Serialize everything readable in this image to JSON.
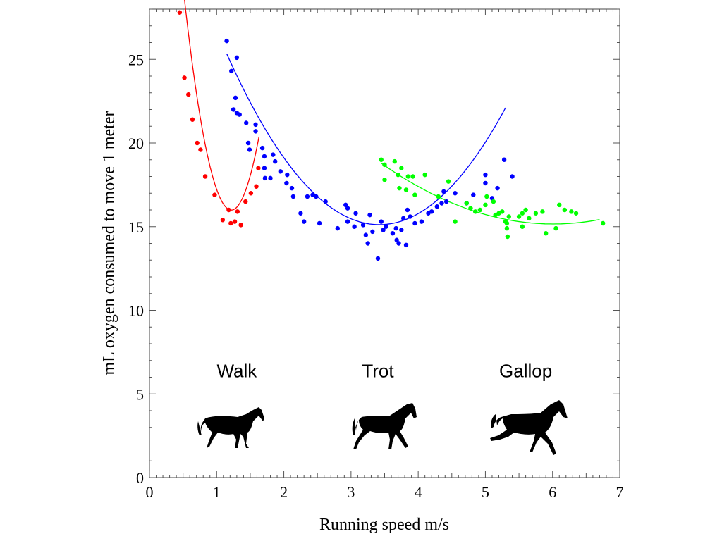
{
  "chart_data": {
    "type": "scatter",
    "title": "",
    "xlabel": "Running speed m/s",
    "ylabel": "mL oxygen consumed to move 1 meter",
    "xlim": [
      0,
      7
    ],
    "ylim": [
      0,
      28
    ],
    "xticks": [
      "0",
      "1",
      "2",
      "3",
      "4",
      "5",
      "6",
      "7"
    ],
    "yticks": [
      "0",
      "5",
      "10",
      "15",
      "20",
      "25"
    ],
    "grid": false,
    "legend": "none",
    "gait_labels": [
      {
        "text": "Walk",
        "x": 1.3,
        "y": 6.0
      },
      {
        "text": "Trot",
        "x": 3.4,
        "y": 6.0
      },
      {
        "text": "Gallop",
        "x": 5.6,
        "y": 6.0
      }
    ],
    "horse_icons": [
      "walking-horse-icon",
      "trotting-horse-icon",
      "galloping-horse-icon"
    ],
    "series": [
      {
        "color": "#ff0000",
        "points": [
          [
            0.45,
            27.8
          ],
          [
            0.52,
            23.9
          ],
          [
            0.58,
            22.9
          ],
          [
            0.64,
            21.4
          ],
          [
            0.71,
            20.0
          ],
          [
            0.76,
            19.6
          ],
          [
            0.83,
            18.0
          ],
          [
            0.97,
            16.9
          ],
          [
            1.09,
            15.4
          ],
          [
            1.18,
            16.0
          ],
          [
            1.21,
            15.2
          ],
          [
            1.27,
            15.3
          ],
          [
            1.31,
            15.9
          ],
          [
            1.36,
            15.1
          ],
          [
            1.43,
            16.5
          ],
          [
            1.51,
            17.0
          ],
          [
            1.59,
            17.4
          ],
          [
            1.62,
            18.5
          ]
        ],
        "fit": {
          "x_range": [
            0.42,
            1.63
          ],
          "coeffs": [
            54.45,
            -63.12,
            25.9
          ]
        }
      },
      {
        "color": "#0000ff",
        "points": [
          [
            1.15,
            26.1
          ],
          [
            1.22,
            24.3
          ],
          [
            1.3,
            25.1
          ],
          [
            1.25,
            22.0
          ],
          [
            1.28,
            22.7
          ],
          [
            1.3,
            21.8
          ],
          [
            1.34,
            21.7
          ],
          [
            1.44,
            21.2
          ],
          [
            1.47,
            20.0
          ],
          [
            1.49,
            19.6
          ],
          [
            1.58,
            21.1
          ],
          [
            1.58,
            20.7
          ],
          [
            1.68,
            19.7
          ],
          [
            1.71,
            19.2
          ],
          [
            1.71,
            18.5
          ],
          [
            1.72,
            17.9
          ],
          [
            1.8,
            17.9
          ],
          [
            1.84,
            19.3
          ],
          [
            1.87,
            18.9
          ],
          [
            1.95,
            18.3
          ],
          [
            2.05,
            18.1
          ],
          [
            2.04,
            17.6
          ],
          [
            2.12,
            17.3
          ],
          [
            2.14,
            16.8
          ],
          [
            2.25,
            15.8
          ],
          [
            2.3,
            15.3
          ],
          [
            2.35,
            16.8
          ],
          [
            2.43,
            16.9
          ],
          [
            2.48,
            16.8
          ],
          [
            2.53,
            15.2
          ],
          [
            2.62,
            16.5
          ],
          [
            2.8,
            14.9
          ],
          [
            2.92,
            16.3
          ],
          [
            2.95,
            15.3
          ],
          [
            2.95,
            16.1
          ],
          [
            3.05,
            15.0
          ],
          [
            3.07,
            15.8
          ],
          [
            3.18,
            15.1
          ],
          [
            3.22,
            14.5
          ],
          [
            3.25,
            14.0
          ],
          [
            3.28,
            15.7
          ],
          [
            3.32,
            14.7
          ],
          [
            3.4,
            13.1
          ],
          [
            3.45,
            15.3
          ],
          [
            3.48,
            14.8
          ],
          [
            3.52,
            15.0
          ],
          [
            3.62,
            14.6
          ],
          [
            3.67,
            14.9
          ],
          [
            3.68,
            14.2
          ],
          [
            3.71,
            14.0
          ],
          [
            3.75,
            14.8
          ],
          [
            3.78,
            15.5
          ],
          [
            3.82,
            13.9
          ],
          [
            3.84,
            16.0
          ],
          [
            3.88,
            15.6
          ],
          [
            3.95,
            15.2
          ],
          [
            4.05,
            15.3
          ],
          [
            4.15,
            15.8
          ],
          [
            4.2,
            15.9
          ],
          [
            4.28,
            16.2
          ],
          [
            4.35,
            16.4
          ],
          [
            4.38,
            17.1
          ],
          [
            4.42,
            16.5
          ],
          [
            4.55,
            17.0
          ],
          [
            4.72,
            16.4
          ],
          [
            4.82,
            16.9
          ],
          [
            5.0,
            18.1
          ],
          [
            5.0,
            17.6
          ],
          [
            5.1,
            16.7
          ],
          [
            5.18,
            17.3
          ],
          [
            5.28,
            19.0
          ],
          [
            5.4,
            18.0
          ]
        ],
        "fit": {
          "x_range": [
            1.15,
            5.3
          ],
          "coeffs": [
            38.3,
            -13.55,
            1.98
          ]
        }
      },
      {
        "color": "#00ff00",
        "points": [
          [
            3.45,
            19.0
          ],
          [
            3.5,
            18.7
          ],
          [
            3.5,
            17.8
          ],
          [
            3.65,
            18.9
          ],
          [
            3.7,
            18.1
          ],
          [
            3.72,
            17.3
          ],
          [
            3.75,
            18.5
          ],
          [
            3.82,
            17.2
          ],
          [
            3.85,
            18.0
          ],
          [
            3.92,
            18.0
          ],
          [
            3.95,
            16.9
          ],
          [
            4.1,
            18.1
          ],
          [
            4.3,
            16.8
          ],
          [
            4.45,
            17.7
          ],
          [
            4.55,
            15.3
          ],
          [
            4.72,
            16.4
          ],
          [
            4.78,
            16.1
          ],
          [
            4.85,
            15.9
          ],
          [
            4.92,
            16.0
          ],
          [
            5.0,
            16.3
          ],
          [
            5.02,
            16.8
          ],
          [
            5.12,
            16.5
          ],
          [
            5.15,
            15.7
          ],
          [
            5.2,
            15.8
          ],
          [
            5.25,
            15.9
          ],
          [
            5.3,
            15.3
          ],
          [
            5.32,
            15.2
          ],
          [
            5.32,
            14.9
          ],
          [
            5.33,
            14.4
          ],
          [
            5.35,
            15.6
          ],
          [
            5.5,
            15.6
          ],
          [
            5.55,
            15.0
          ],
          [
            5.55,
            15.8
          ],
          [
            5.6,
            16.0
          ],
          [
            5.65,
            15.5
          ],
          [
            5.75,
            15.8
          ],
          [
            5.85,
            15.9
          ],
          [
            5.9,
            14.6
          ],
          [
            6.05,
            14.9
          ],
          [
            6.1,
            16.3
          ],
          [
            6.18,
            16.0
          ],
          [
            6.28,
            15.9
          ],
          [
            6.35,
            15.8
          ],
          [
            6.75,
            15.2
          ]
        ],
        "fit": {
          "x_range": [
            3.45,
            6.7
          ],
          "coeffs": [
            35.2,
            -6.67,
            0.555
          ]
        }
      }
    ]
  }
}
